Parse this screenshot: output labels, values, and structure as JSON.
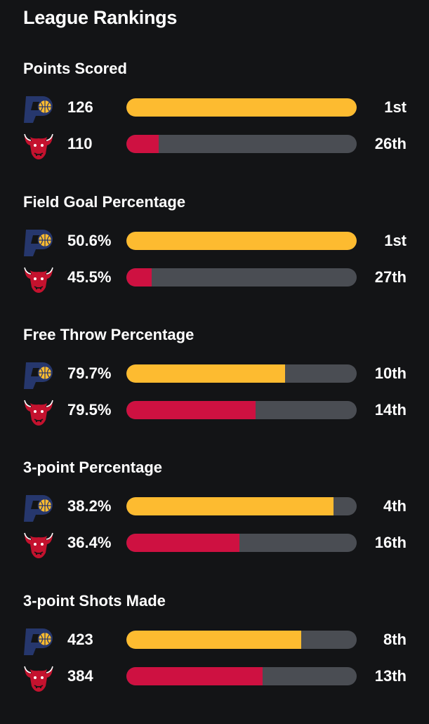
{
  "title": "League Rankings",
  "colors": {
    "pacers": "#fdbb30",
    "bulls": "#ce1141",
    "track": "#4a4d53"
  },
  "teams": {
    "pacers": {
      "icon": "pacers-logo-icon"
    },
    "bulls": {
      "icon": "bulls-logo-icon"
    }
  },
  "stats": [
    {
      "title": "Points Scored",
      "pacers": {
        "value": "126",
        "rank": "1st",
        "fill": 1.0
      },
      "bulls": {
        "value": "110",
        "rank": "26th",
        "fill": 0.14
      }
    },
    {
      "title": "Field Goal Percentage",
      "pacers": {
        "value": "50.6%",
        "rank": "1st",
        "fill": 1.0
      },
      "bulls": {
        "value": "45.5%",
        "rank": "27th",
        "fill": 0.11
      }
    },
    {
      "title": "Free Throw Percentage",
      "pacers": {
        "value": "79.7%",
        "rank": "10th",
        "fill": 0.69
      },
      "bulls": {
        "value": "79.5%",
        "rank": "14th",
        "fill": 0.56
      }
    },
    {
      "title": "3-point Percentage",
      "pacers": {
        "value": "38.2%",
        "rank": "4th",
        "fill": 0.9
      },
      "bulls": {
        "value": "36.4%",
        "rank": "16th",
        "fill": 0.49
      }
    },
    {
      "title": "3-point Shots Made",
      "pacers": {
        "value": "423",
        "rank": "8th",
        "fill": 0.76
      },
      "bulls": {
        "value": "384",
        "rank": "13th",
        "fill": 0.59
      }
    }
  ]
}
